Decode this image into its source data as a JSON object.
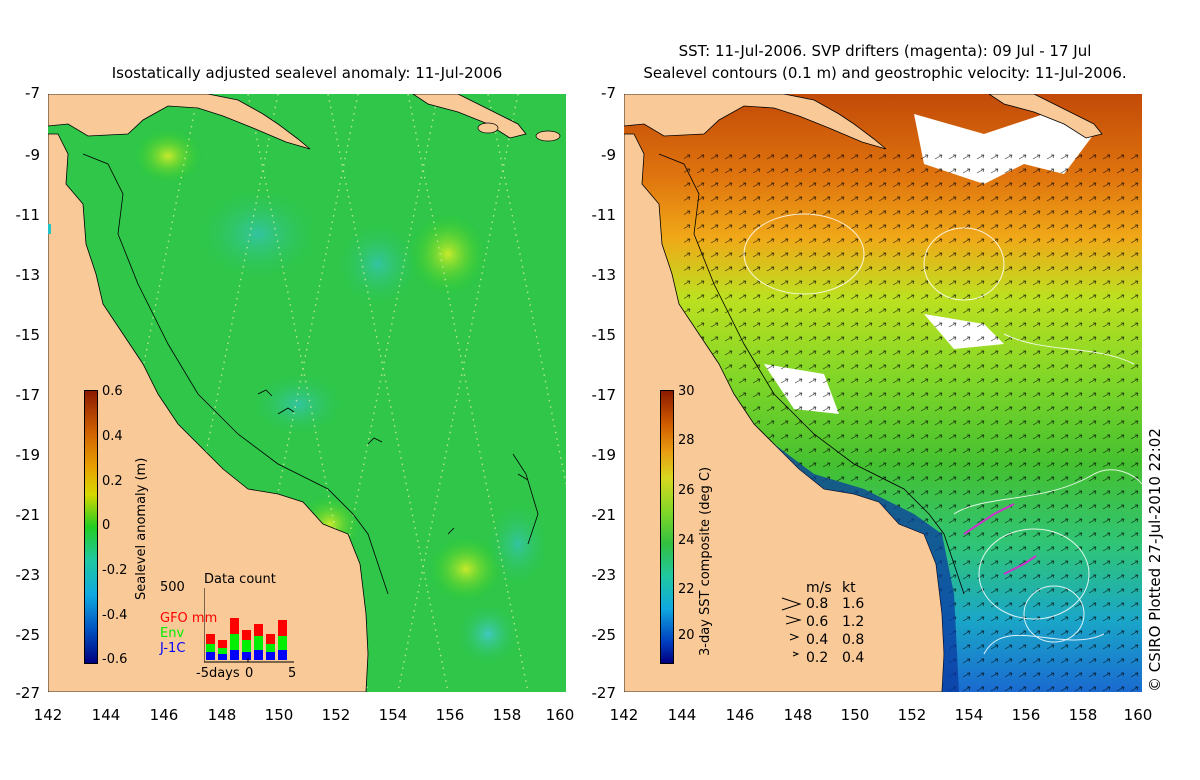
{
  "left_map": {
    "title": "Isostatically adjusted sealevel anomaly: 11-Jul-2006",
    "yticks": [
      "-7",
      "-9",
      "-11",
      "-13",
      "-15",
      "-17",
      "-19",
      "-21",
      "-23",
      "-25",
      "-27"
    ],
    "xticks": [
      "142",
      "144",
      "146",
      "148",
      "150",
      "152",
      "154",
      "156",
      "158",
      "160"
    ],
    "colorbar": {
      "title": "Sealevel anomaly (m)",
      "labels": [
        "0.6",
        "0.4",
        "0.2",
        "0",
        "-0.2",
        "-0.4",
        "-0.6"
      ],
      "range": [
        -0.6,
        0.6
      ]
    },
    "inset": {
      "title": "Data count",
      "ymax": "500",
      "legend": [
        {
          "label": "GFO mm",
          "color": "#ff0000"
        },
        {
          "label": "Env",
          "color": "#00ee00"
        },
        {
          "label": "J-1C",
          "color": "#0000ff"
        }
      ],
      "xlabels": [
        "-5days",
        "0",
        "5"
      ]
    }
  },
  "right_map": {
    "title_line1": "SST: 11-Jul-2006. SVP drifters (magenta): 09 Jul - 17 Jul",
    "title_line2": "Sealevel contours (0.1 m) and geostrophic velocity: 11-Jul-2006.",
    "yticks": [
      "-7",
      "-9",
      "-11",
      "-13",
      "-15",
      "-17",
      "-19",
      "-21",
      "-23",
      "-25",
      "-27"
    ],
    "xticks": [
      "142",
      "144",
      "146",
      "148",
      "150",
      "152",
      "154",
      "156",
      "158",
      "160"
    ],
    "colorbar": {
      "title": "3-day SST composite (deg C)",
      "labels": [
        "30",
        "28",
        "26",
        "24",
        "22",
        "20"
      ],
      "range": [
        19,
        30
      ]
    },
    "velocity_key": {
      "header_ms": "m/s",
      "header_kt": "kt",
      "rows": [
        {
          "ms": "0.8",
          "kt": "1.6"
        },
        {
          "ms": "0.6",
          "kt": "1.2"
        },
        {
          "ms": "0.4",
          "kt": "0.8"
        },
        {
          "ms": "0.2",
          "kt": "0.4"
        }
      ]
    },
    "credit": "© CSIRO Plotted 27-Jul-2010 22:02"
  },
  "colors": {
    "land": "#f9c998",
    "ssla_base": "#22cc22",
    "sst_warm": "#e06a10",
    "sst_mid": "#99dd22",
    "sst_cool": "#1a8ccc"
  }
}
